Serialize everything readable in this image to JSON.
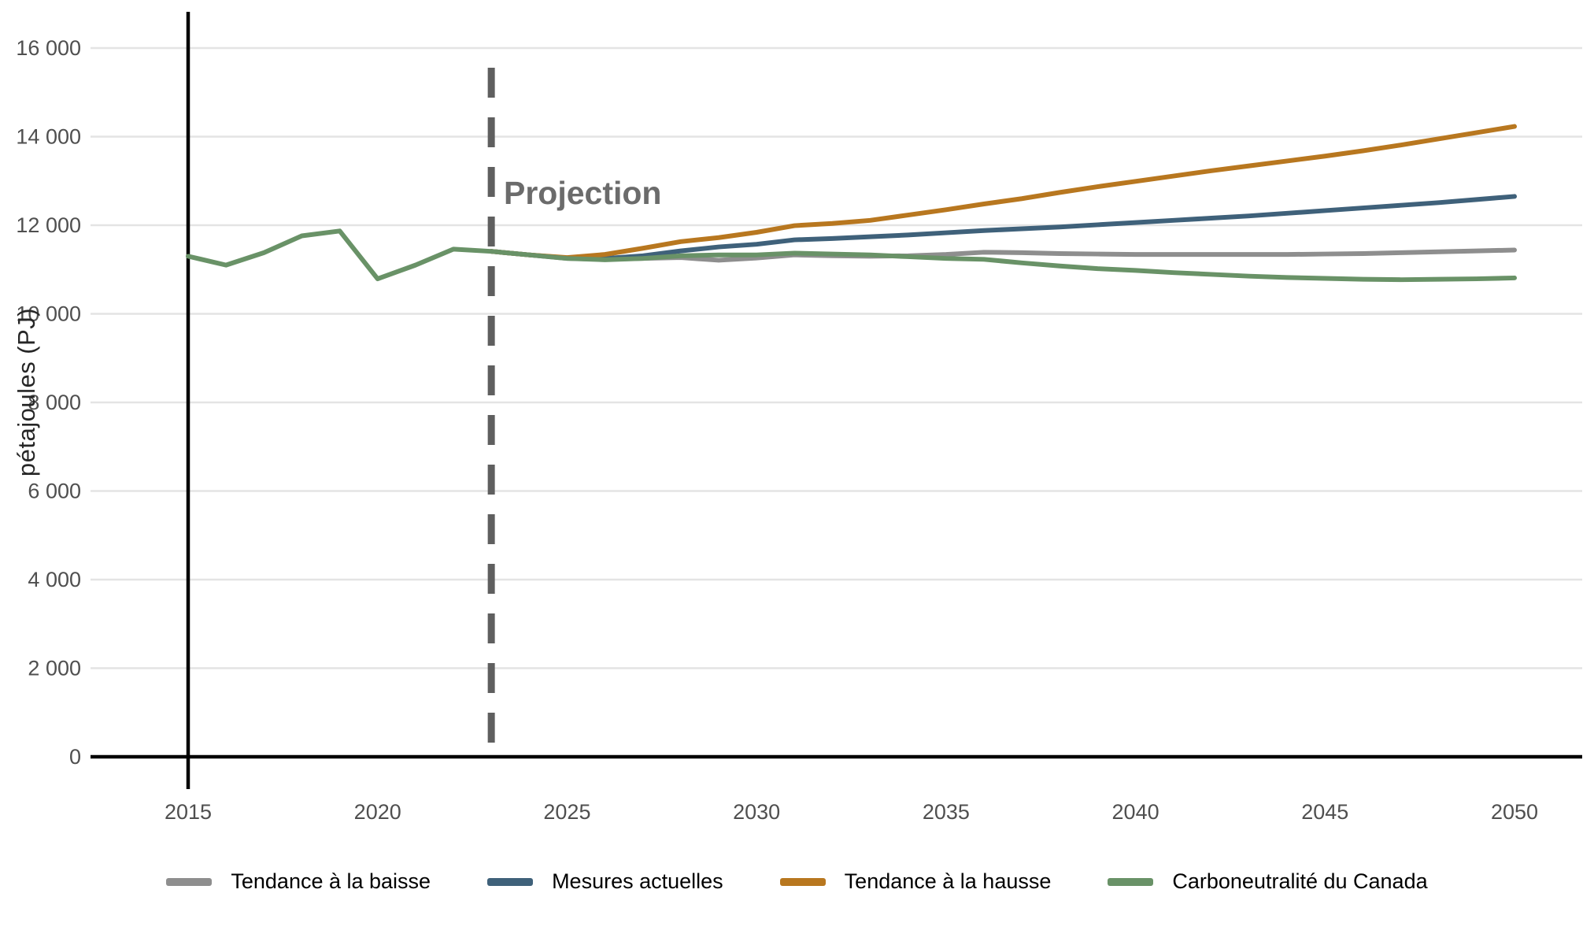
{
  "chart_data": {
    "type": "line",
    "title": "",
    "ylabel": "pétajoules (PJ)",
    "xlabel": "",
    "ylim": [
      0,
      16000
    ],
    "xlim": [
      2015,
      2050
    ],
    "grid": "horizontal",
    "grid_color": "#e4e4e4",
    "axis_color": "#000000",
    "tick_label_color": "#4f4f4f",
    "background": "#ffffff",
    "legend_position": "bottom",
    "x_ticks": [
      2015,
      2020,
      2025,
      2030,
      2035,
      2040,
      2045,
      2050
    ],
    "y_tick_values": [
      0,
      2000,
      4000,
      6000,
      8000,
      10000,
      12000,
      14000,
      16000
    ],
    "y_tick_labels": [
      "0",
      "2 000",
      "4 000",
      "6 000",
      "8 000",
      "10 000",
      "12 000",
      "14 000",
      "16 000"
    ],
    "annotation": {
      "label": "Projection",
      "year": 2023,
      "line_color": "#5f5f5f",
      "label_color": "#6b6b6b"
    },
    "historical_axis_year": 2015,
    "series": [
      {
        "name": "Tendance à la baisse",
        "color": "#8e8e8e",
        "start_year": 2023,
        "values": [
          11410,
          11330,
          11250,
          11230,
          11250,
          11270,
          11210,
          11260,
          11330,
          11310,
          11300,
          11310,
          11340,
          11390,
          11380,
          11360,
          11350,
          11340,
          11340,
          11340,
          11340,
          11340,
          11350,
          11360,
          11380,
          11400,
          11420,
          11440
        ]
      },
      {
        "name": "Mesures actuelles",
        "color": "#3f617a",
        "start_year": 2023,
        "values": [
          11410,
          11330,
          11260,
          11250,
          11310,
          11420,
          11510,
          11570,
          11670,
          11700,
          11740,
          11780,
          11830,
          11880,
          11920,
          11960,
          12010,
          12060,
          12110,
          12160,
          12210,
          12270,
          12330,
          12390,
          12450,
          12510,
          12580,
          12650
        ]
      },
      {
        "name": "Tendance à la hausse",
        "color": "#b8771f",
        "start_year": 2023,
        "values": [
          11410,
          11330,
          11270,
          11340,
          11480,
          11630,
          11720,
          11840,
          11990,
          12040,
          12110,
          12230,
          12350,
          12480,
          12600,
          12740,
          12870,
          12990,
          13110,
          13230,
          13340,
          13450,
          13560,
          13680,
          13810,
          13950,
          14090,
          14230
        ]
      },
      {
        "name": "Carboneutralité du Canada",
        "color": "#699267",
        "start_year": 2015,
        "values": [
          11300,
          11100,
          11380,
          11760,
          11870,
          10790,
          11100,
          11460,
          11410,
          11330,
          11250,
          11220,
          11250,
          11310,
          11330,
          11330,
          11370,
          11350,
          11330,
          11290,
          11250,
          11230,
          11150,
          11080,
          11020,
          10980,
          10930,
          10890,
          10850,
          10820,
          10800,
          10780,
          10770,
          10780,
          10790,
          10810
        ]
      }
    ]
  }
}
